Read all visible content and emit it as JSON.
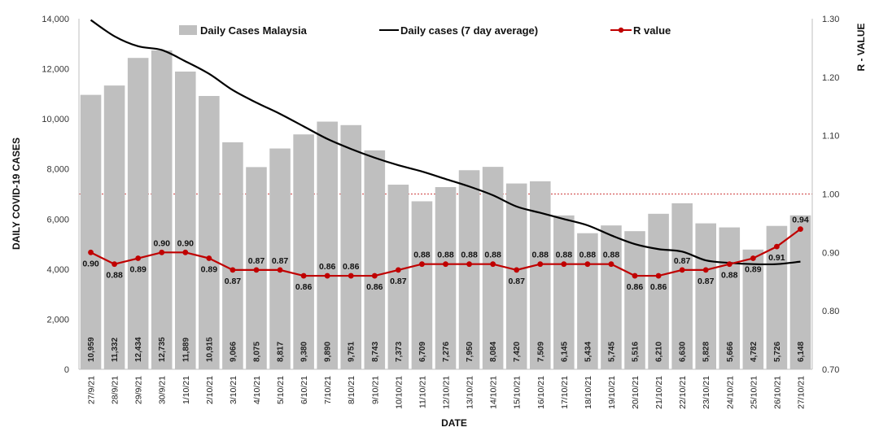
{
  "chart_data": {
    "type": "bar",
    "categories": [
      "27/9/21",
      "28/9/21",
      "29/9/21",
      "30/9/21",
      "1/10/21",
      "2/10/21",
      "3/10/21",
      "4/10/21",
      "5/10/21",
      "6/10/21",
      "7/10/21",
      "8/10/21",
      "9/10/21",
      "10/10/21",
      "11/10/21",
      "12/10/21",
      "13/10/21",
      "14/10/21",
      "15/10/21",
      "16/10/21",
      "17/10/21",
      "18/10/21",
      "19/10/21",
      "20/10/21",
      "21/10/21",
      "22/10/21",
      "23/10/21",
      "24/10/21",
      "25/10/21",
      "26/10/21",
      "27/10/21"
    ],
    "xlabel": "DATE",
    "ylabel": "DAILY COVID-19 CASES",
    "y2label": "R - VALUE",
    "ylim": [
      0,
      14000
    ],
    "y_ticks": [
      "0",
      "2,000",
      "4,000",
      "6,000",
      "8,000",
      "10,000",
      "12,000",
      "14,000"
    ],
    "y2lim": [
      0.7,
      1.3
    ],
    "y2_ticks": [
      "0.70",
      "0.80",
      "0.90",
      "1.00",
      "1.10",
      "1.20",
      "1.30"
    ],
    "reference_line_y2": 1.0,
    "legend_position": "top",
    "series": [
      {
        "name": "Daily Cases Malaysia",
        "type": "bar",
        "axis": "left",
        "color": "#bfbfbf",
        "values": [
          10959,
          11332,
          12434,
          12735,
          11889,
          10915,
          9066,
          8075,
          8817,
          9380,
          9890,
          9751,
          8743,
          7373,
          6709,
          7276,
          7950,
          8084,
          7420,
          7509,
          6145,
          5434,
          5745,
          5516,
          6210,
          6630,
          5828,
          5666,
          4782,
          5726,
          6148
        ],
        "labels": [
          "10,959",
          "11,332",
          "12,434",
          "12,735",
          "11,889",
          "10,915",
          "9,066",
          "8,075",
          "8,817",
          "9,380",
          "9,890",
          "9,751",
          "8,743",
          "7,373",
          "6,709",
          "7,276",
          "7,950",
          "8,084",
          "7,420",
          "7,509",
          "6,145",
          "5,434",
          "5,745",
          "5,516",
          "6,210",
          "6,630",
          "5,828",
          "5,666",
          "4,782",
          "5,726",
          "6,148"
        ]
      },
      {
        "name": "Daily cases (7 day average)",
        "type": "line",
        "axis": "left",
        "color": "#000000",
        "values": [
          13950,
          13300,
          12900,
          12750,
          12300,
          11800,
          11150,
          10650,
          10200,
          9700,
          9200,
          8800,
          8450,
          8150,
          7900,
          7600,
          7300,
          6950,
          6500,
          6250,
          6000,
          5750,
          5350,
          5000,
          4800,
          4700,
          4350,
          4250,
          4200,
          4200,
          4300
        ]
      },
      {
        "name": "R value",
        "type": "line",
        "axis": "right",
        "color": "#c00000",
        "values": [
          0.9,
          0.88,
          0.89,
          0.9,
          0.9,
          0.89,
          0.87,
          0.87,
          0.87,
          0.86,
          0.86,
          0.86,
          0.86,
          0.87,
          0.88,
          0.88,
          0.88,
          0.88,
          0.87,
          0.88,
          0.88,
          0.88,
          0.88,
          0.86,
          0.86,
          0.87,
          0.87,
          0.88,
          0.89,
          0.91,
          0.94
        ],
        "labels": [
          "0.90",
          "0.88",
          "0.89",
          "0.90",
          "0.90",
          "0.89",
          "0.87",
          "0.87",
          "0.87",
          "0.86",
          "0.86",
          "0.86",
          "0.86",
          "0.87",
          "0.88",
          "0.88",
          "0.88",
          "0.88",
          "0.87",
          "0.88",
          "0.88",
          "0.88",
          "0.88",
          "0.86",
          "0.86",
          "0.87",
          "0.87",
          "0.88",
          "0.89",
          "0.91",
          "0.94"
        ]
      }
    ]
  }
}
